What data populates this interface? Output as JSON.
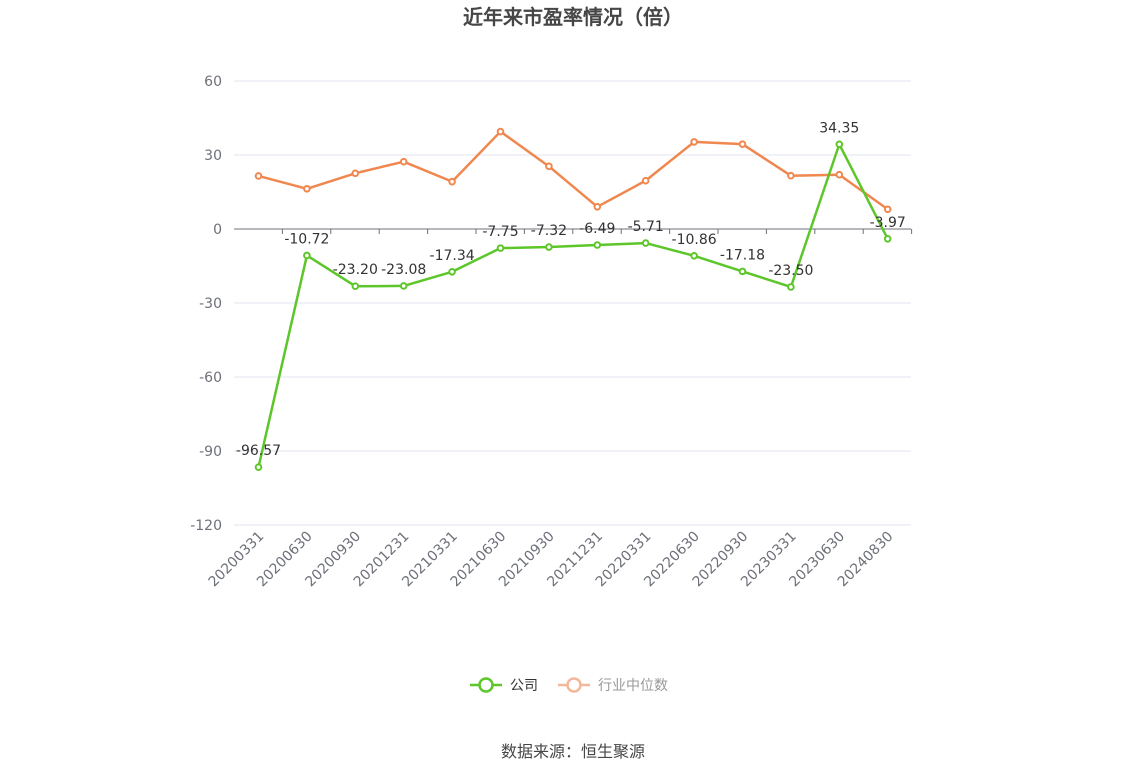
{
  "chart_data": {
    "type": "line",
    "title": "近年来市盈率情况（倍）",
    "source": "数据来源：恒生聚源",
    "categories": [
      "20200331",
      "20200630",
      "20200930",
      "20201231",
      "20210331",
      "20210630",
      "20210930",
      "20211231",
      "20220331",
      "20220630",
      "20220930",
      "20230331",
      "20230630",
      "20240830"
    ],
    "yticks": [
      60,
      30,
      0,
      -30,
      -60,
      -90,
      -120
    ],
    "ylim": [
      -120,
      60
    ],
    "grid": true,
    "legend_position": "bottom",
    "series": [
      {
        "name": "公司",
        "color": "#5cc62a",
        "values": [
          -96.57,
          -10.72,
          -23.2,
          -23.08,
          -17.34,
          -7.75,
          -7.32,
          -6.49,
          -5.71,
          -10.86,
          -17.18,
          -23.5,
          34.35,
          -3.97
        ],
        "labels": [
          "-96.57",
          "-10.72",
          "-23.20",
          "-23.08",
          "-17.34",
          "-7.75",
          "-7.32",
          "-6.49",
          "-5.71",
          "-10.86",
          "-17.18",
          "-23.50",
          "34.35",
          "-3.97"
        ]
      },
      {
        "name": "行业中位数",
        "color": "#f0874f",
        "legend_color": "#f5b79a",
        "values": [
          21.5,
          16.3,
          22.6,
          27.3,
          19.2,
          39.5,
          25.4,
          9.0,
          19.6,
          35.3,
          34.4,
          21.6,
          22.0,
          8.0
        ]
      }
    ]
  }
}
